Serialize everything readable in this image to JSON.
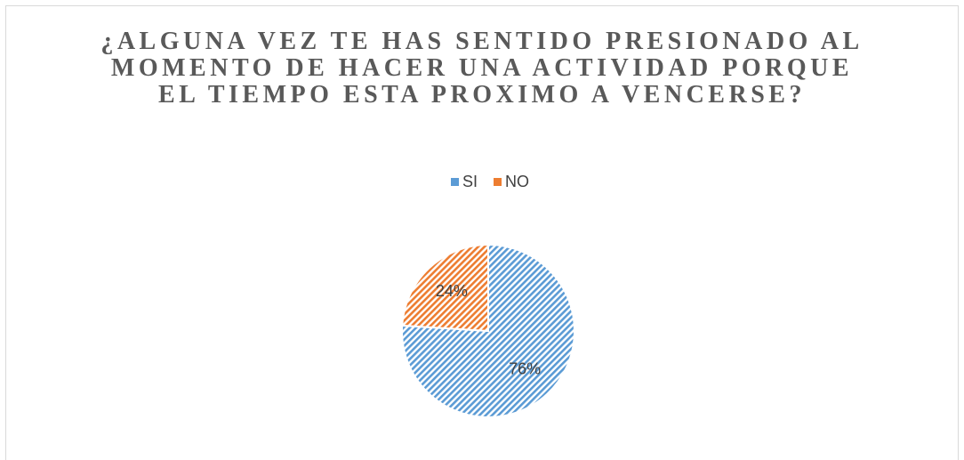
{
  "chart_data": {
    "type": "pie",
    "title": "¿ALGUNA VEZ TE HAS SENTIDO PRESIONADO AL MOMENTO DE HACER UNA ACTIVIDAD PORQUE EL TIEMPO ESTA PROXIMO A VENCERSE?",
    "categories": [
      "SI",
      "NO"
    ],
    "values": [
      76,
      24
    ],
    "value_labels": [
      "76%",
      "24%"
    ],
    "colors": [
      "#5b9bd5",
      "#ed7d31"
    ],
    "legend": "top"
  }
}
